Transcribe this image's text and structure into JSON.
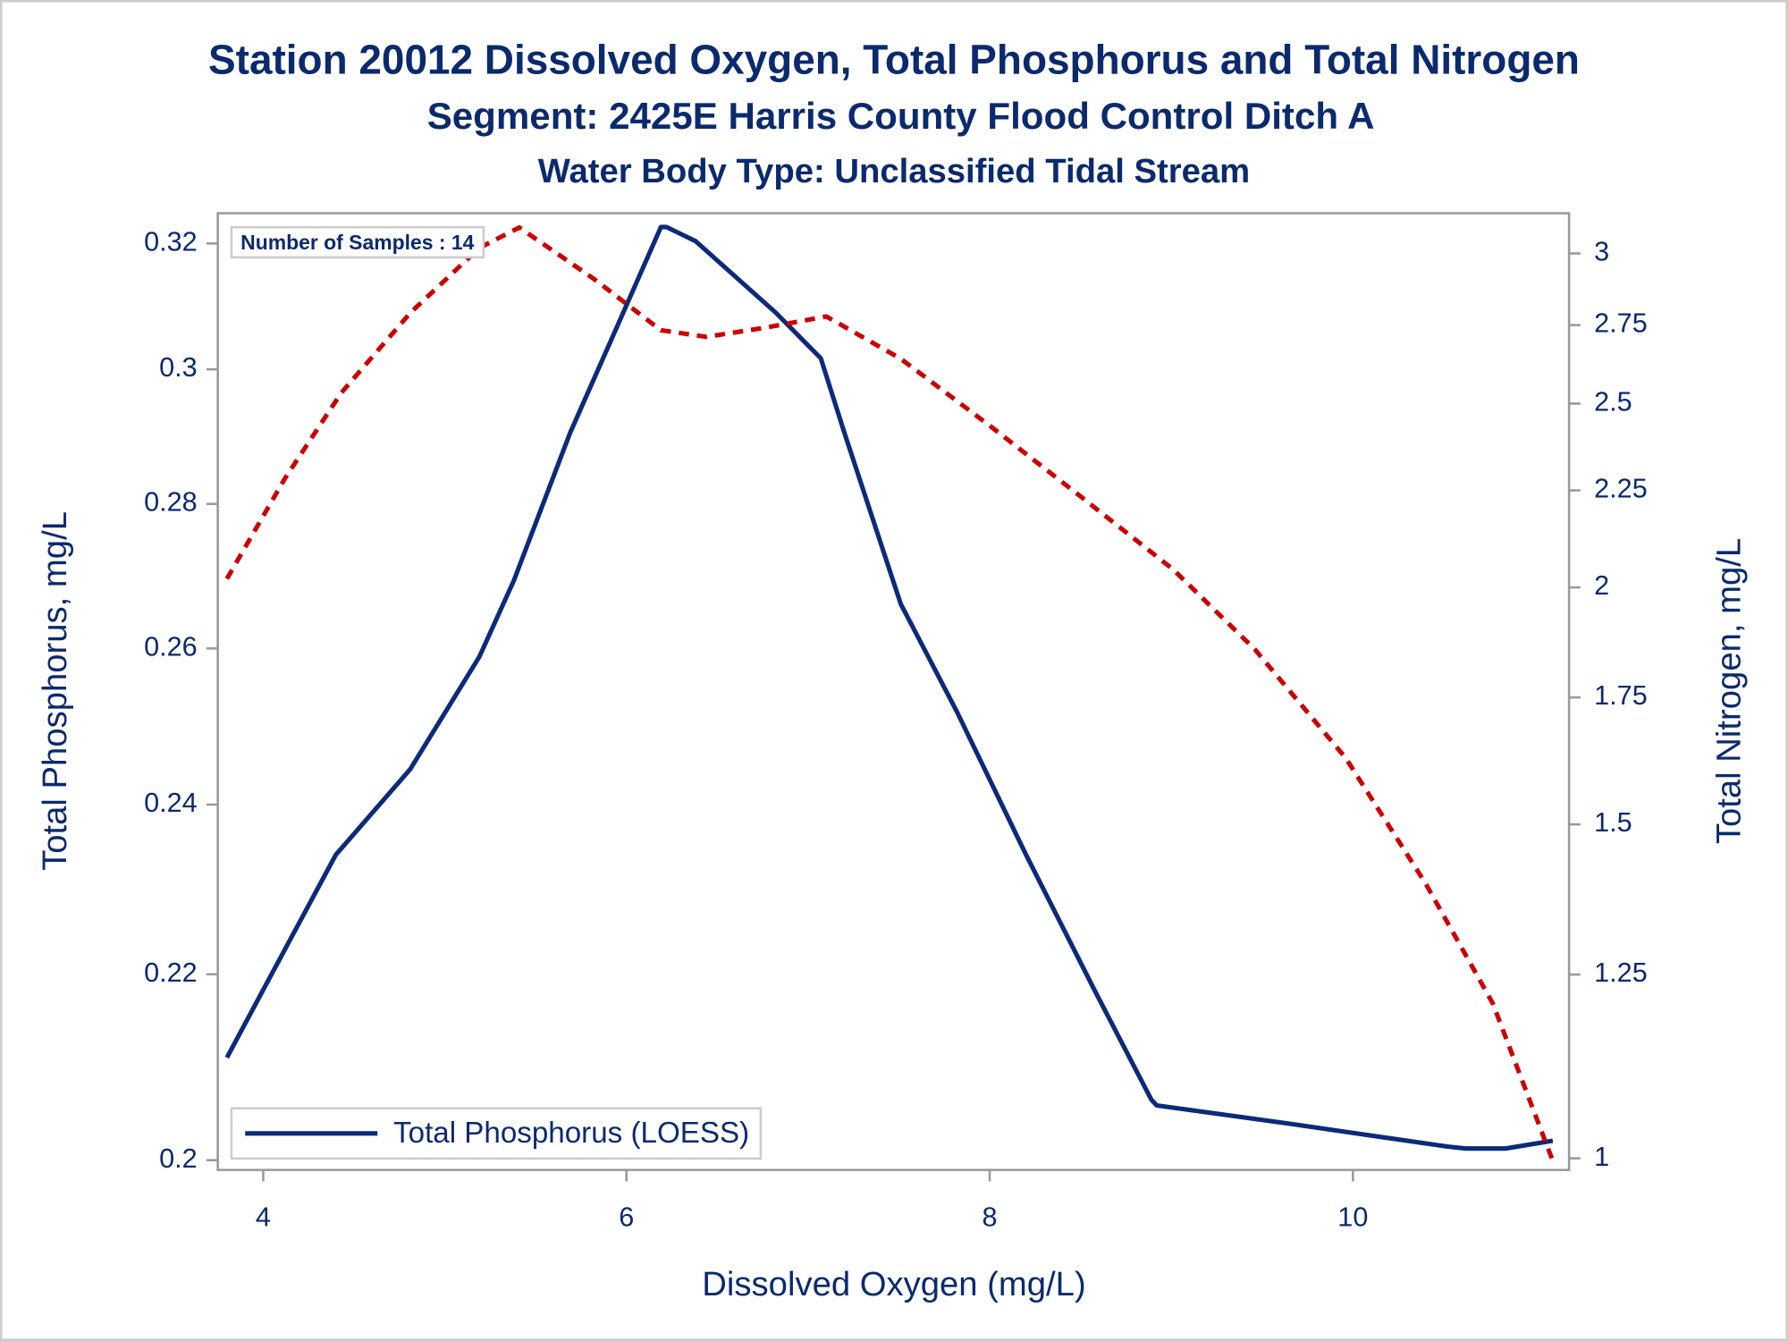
{
  "chart_data": {
    "type": "line",
    "title": "Station 20012  Dissolved Oxygen, Total Phosphorus and Total Nitrogen",
    "subtitle": "Segment: 2425E  Harris County Flood Control Ditch A",
    "subtitle2": "Water Body Type: Unclassified Tidal Stream",
    "annotation": "Number of Samples : 14",
    "xlabel": "Dissolved Oxygen (mg/L)",
    "ylabel": "Total Phosphorus, mg/L",
    "y2label": "Total Nitrogen, mg/L",
    "xlim": [
      3.75,
      11.19
    ],
    "xticks": [
      4,
      6,
      8,
      10
    ],
    "ylim": [
      0.199,
      0.325
    ],
    "yticks": [
      0.2,
      0.22,
      0.24,
      0.26,
      0.28,
      0.3,
      0.32
    ],
    "ylog": true,
    "y2lim": [
      0.986,
      3.15
    ],
    "y2ticks": [
      1,
      1.25,
      1.5,
      1.75,
      2,
      2.25,
      2.5,
      2.75,
      3
    ],
    "y2log": true,
    "legend": "lower left",
    "series": [
      {
        "name": "Total Phosphorus (LOESS)",
        "color": "#0d2a7a",
        "line_style": "solid",
        "x": [
          3.8,
          4.03,
          4.4,
          4.81,
          5.19,
          5.38,
          5.69,
          5.94,
          6.19,
          6.22,
          6.38,
          6.82,
          7.07,
          7.2,
          7.51,
          7.82,
          8.2,
          8.58,
          8.89,
          8.92,
          9.64,
          10.52,
          10.62,
          10.84,
          11.1
        ],
        "values": [
          0.2108,
          0.2194,
          0.2339,
          0.2444,
          0.2589,
          0.2692,
          0.2904,
          0.3061,
          0.3227,
          0.3227,
          0.3204,
          0.3089,
          0.3017,
          0.2904,
          0.266,
          0.2517,
          0.2339,
          0.2181,
          0.2063,
          0.2057,
          0.2038,
          0.2014,
          0.2012,
          0.2012,
          0.202
        ]
      },
      {
        "color": "#cc0000",
        "line_style": "dashed",
        "axis": "y2",
        "x": [
          3.8,
          4.12,
          4.43,
          4.81,
          5.19,
          5.41,
          5.82,
          6.19,
          6.44,
          6.76,
          7.1,
          7.51,
          8.01,
          8.51,
          9.01,
          9.46,
          9.96,
          10.4,
          10.77,
          11.1
        ],
        "values": [
          2.021,
          2.283,
          2.533,
          2.791,
          3.02,
          3.096,
          2.909,
          2.733,
          2.711,
          2.741,
          2.779,
          2.64,
          2.43,
          2.23,
          2.044,
          1.855,
          1.626,
          1.396,
          1.207,
          0.997
        ]
      }
    ]
  }
}
